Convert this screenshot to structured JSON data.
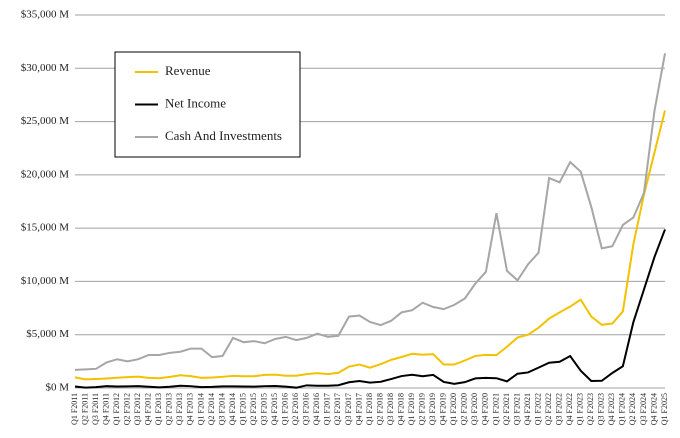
{
  "chart_data": {
    "type": "line",
    "categories": [
      "Q1 F2011",
      "Q2 F2011",
      "Q3 F2011",
      "Q4 F2011",
      "Q1 F2012",
      "Q2 F2012",
      "Q3 F2012",
      "Q4 F2012",
      "Q1 F2013",
      "Q2 F2013",
      "Q3 F2013",
      "Q4 F2013",
      "Q1 F2014",
      "Q2 F2014",
      "Q3 F2014",
      "Q4 F2014",
      "Q1 F2015",
      "Q2 F2015",
      "Q3 F2015",
      "Q4 F2015",
      "Q1 F2016",
      "Q2 F2016",
      "Q3 F2016",
      "Q4 F2016",
      "Q1 F2017",
      "Q2 F2017",
      "Q3 F2017",
      "Q4 F2017",
      "Q1 F2018",
      "Q2 F2018",
      "Q3 F2018",
      "Q4 F2018",
      "Q1 F2019",
      "Q2 F2019",
      "Q3 F2019",
      "Q4 F2019",
      "Q1 F2020",
      "Q2 F2020",
      "Q3 F2020",
      "Q4 F2020",
      "Q1 F2021",
      "Q2 F2021",
      "Q3 F2021",
      "Q4 F2021",
      "Q1 F2022",
      "Q2 F2022",
      "Q3 F2022",
      "Q4 F2022",
      "Q1 F2023",
      "Q2 F2023",
      "Q3 F2023",
      "Q4 F2023",
      "Q1 F2024",
      "Q2 F2024",
      "Q3 F2024",
      "Q4 F2024",
      "Q1 F2025"
    ],
    "series": [
      {
        "name": "Revenue",
        "color": "#f2c100",
        "values": [
          1000,
          810,
          840,
          890,
          960,
          1020,
          1070,
          950,
          920,
          1040,
          1200,
          1110,
          950,
          980,
          1050,
          1140,
          1100,
          1100,
          1230,
          1250,
          1150,
          1150,
          1300,
          1400,
          1300,
          1430,
          2000,
          2200,
          1900,
          2230,
          2640,
          2910,
          3210,
          3120,
          3180,
          2200,
          2200,
          2580,
          3010,
          3110,
          3080,
          3870,
          4730,
          5000,
          5660,
          6510,
          7100,
          7640,
          8290,
          6700,
          5930,
          6050,
          7190,
          13510,
          18120,
          22100,
          26040
        ]
      },
      {
        "name": "Net Income",
        "color": "#000000",
        "values": [
          140,
          40,
          80,
          170,
          140,
          150,
          180,
          120,
          60,
          120,
          210,
          170,
          80,
          100,
          150,
          150,
          140,
          130,
          170,
          190,
          130,
          30,
          250,
          210,
          210,
          260,
          540,
          660,
          510,
          580,
          840,
          1120,
          1240,
          1100,
          1230,
          570,
          390,
          550,
          900,
          950,
          920,
          620,
          1340,
          1460,
          1910,
          2370,
          2460,
          3000,
          1620,
          660,
          680,
          1410,
          2040,
          6190,
          9240,
          12290,
          14880
        ]
      },
      {
        "name": "Cash And Investments",
        "color": "#a6a6a6",
        "values": [
          1700,
          1750,
          1800,
          2400,
          2700,
          2500,
          2700,
          3100,
          3100,
          3300,
          3400,
          3700,
          3700,
          2900,
          3000,
          4700,
          4300,
          4400,
          4200,
          4600,
          4800,
          4500,
          4700,
          5100,
          4800,
          4900,
          6700,
          6800,
          6200,
          5900,
          6300,
          7100,
          7300,
          8000,
          7600,
          7400,
          7800,
          8400,
          9800,
          10900,
          16400,
          11000,
          10100,
          11600,
          12700,
          19700,
          19300,
          21200,
          20300,
          17000,
          13100,
          13300,
          15300,
          16000,
          18300,
          26000,
          31400
        ]
      }
    ],
    "ylim": [
      0,
      35000
    ],
    "yticks": [
      {
        "value": 0,
        "label": "$0 M"
      },
      {
        "value": 5000,
        "label": "$5,000 M"
      },
      {
        "value": 10000,
        "label": "$10,000 M"
      },
      {
        "value": 15000,
        "label": "$15,000 M"
      },
      {
        "value": 20000,
        "label": "$20,000 M"
      },
      {
        "value": 25000,
        "label": "$25,000 M"
      },
      {
        "value": 30000,
        "label": "$30,000 M"
      },
      {
        "value": 35000,
        "label": "$35,000 M"
      }
    ],
    "grid": true
  }
}
